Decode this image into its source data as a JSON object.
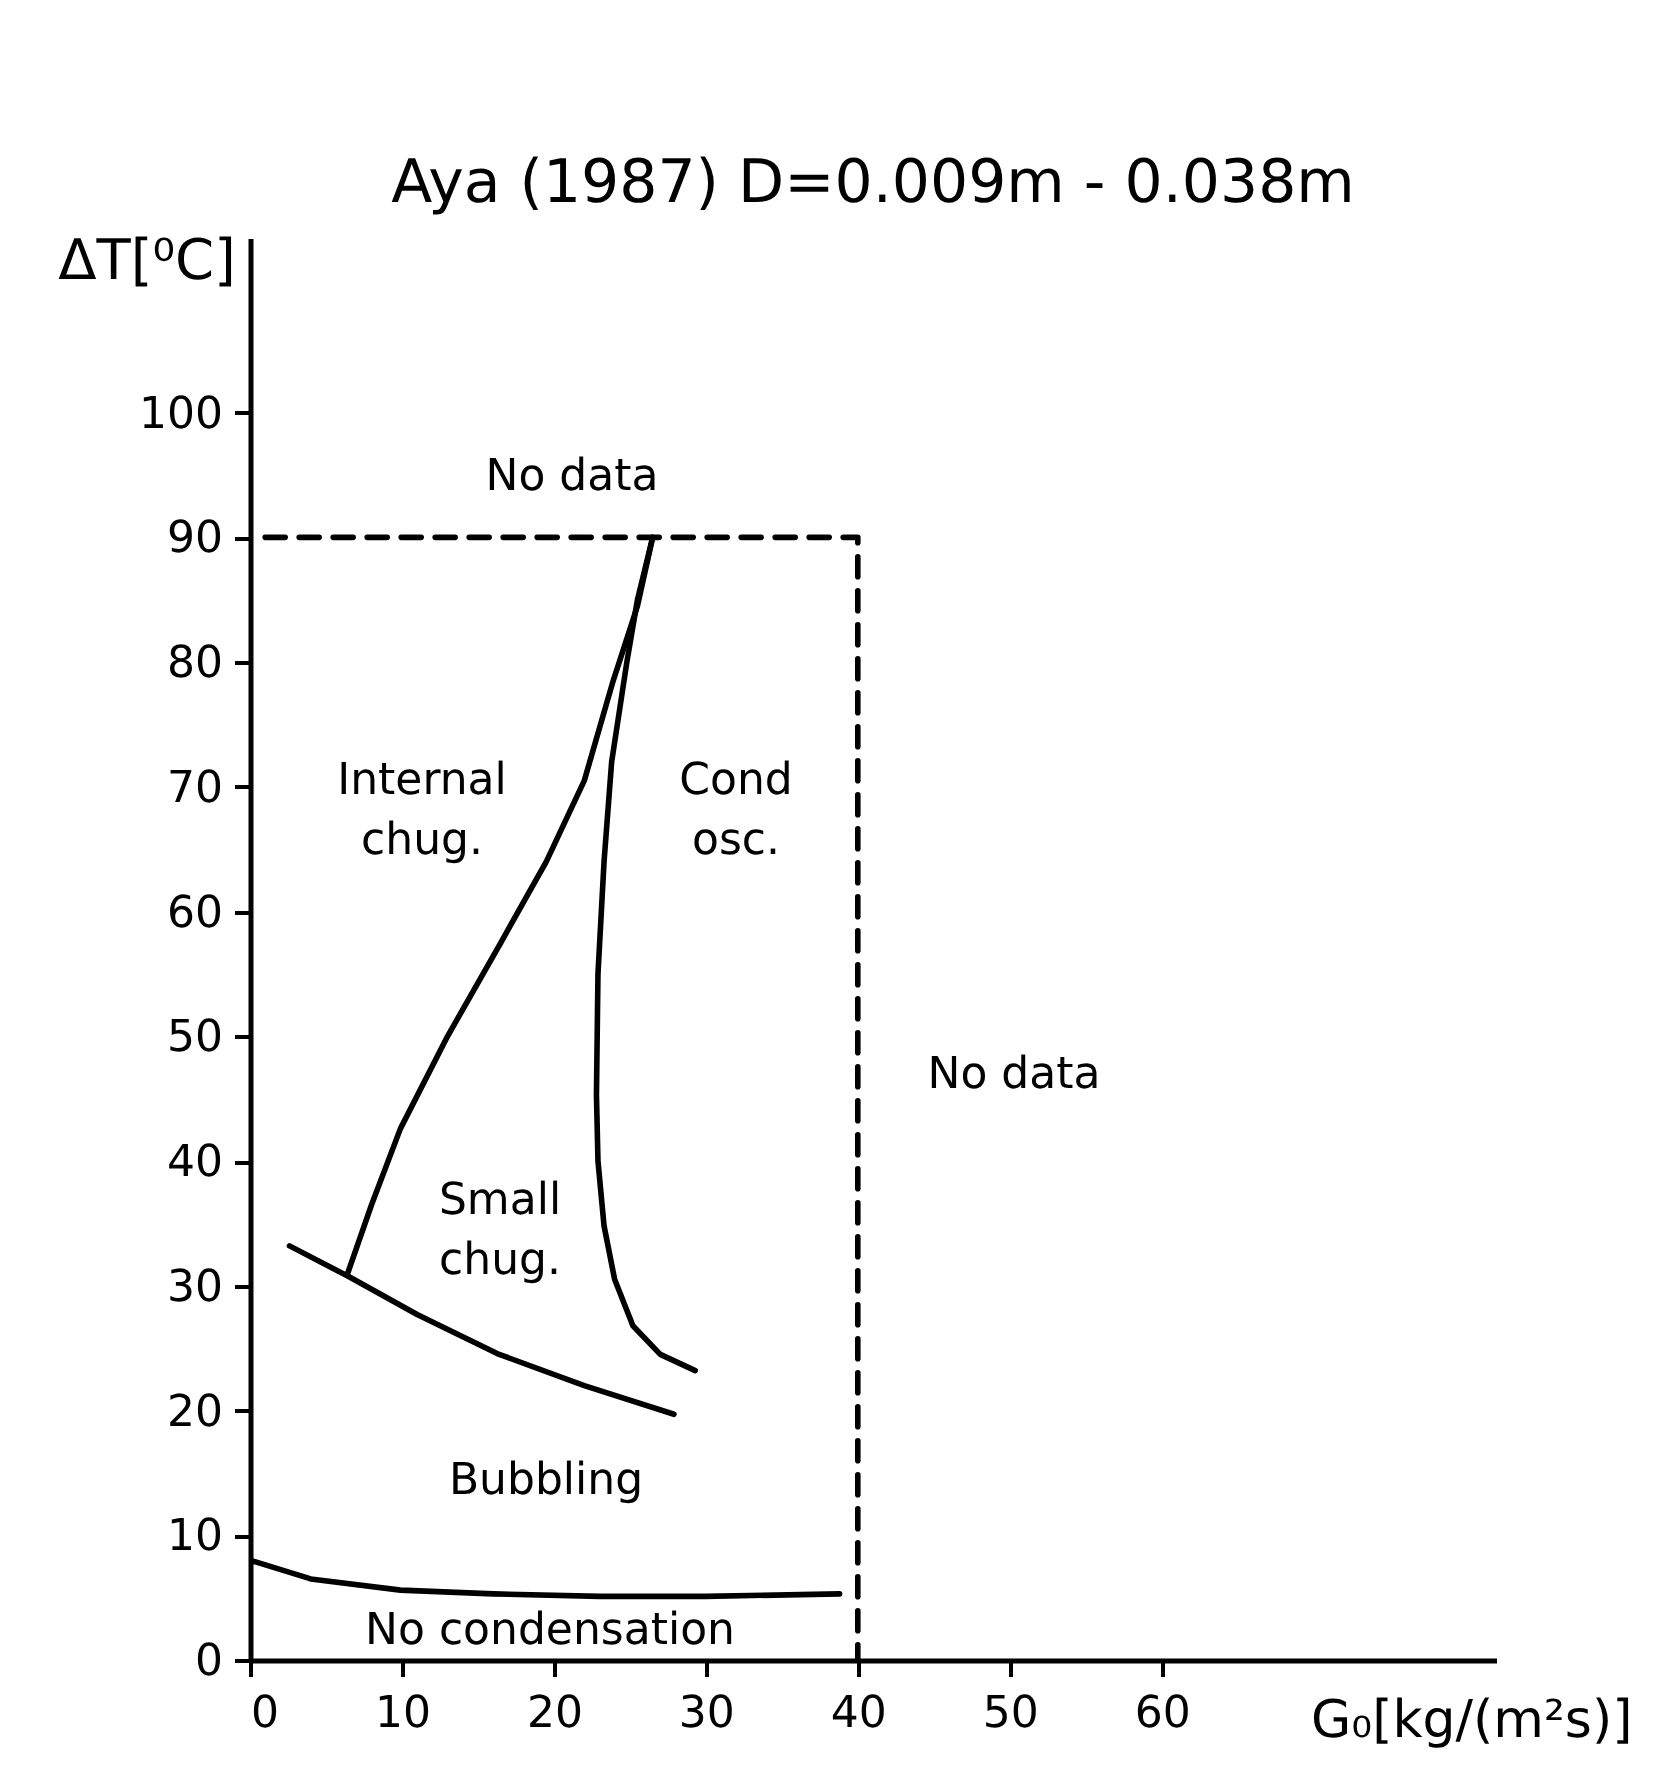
{
  "chart_data": {
    "type": "line",
    "title": "Aya (1987)    D=0.009m - 0.038m",
    "xlabel": "G₀[kg/(m²s)]",
    "ylabel": "ΔT[⁰C]",
    "xlim": [
      0,
      82
    ],
    "ylim": [
      0,
      114
    ],
    "xticks": [
      0,
      10,
      20,
      30,
      40,
      50,
      60
    ],
    "yticks": [
      0,
      10,
      20,
      30,
      40,
      50,
      60,
      70,
      80,
      90,
      100
    ],
    "grid": false,
    "marker": "none",
    "series": [
      {
        "color": "#000000",
        "line_style": "solid",
        "x": [
          6.4,
          8,
          9.9,
          13,
          16.5,
          19.5,
          22,
          23.9,
          25.5,
          26.5
        ],
        "values": [
          30.9,
          36.5,
          42.6,
          50,
          57.5,
          64,
          70.5,
          78.5,
          84.5,
          90
        ]
      },
      {
        "color": "#000000",
        "line_style": "solid",
        "x": [
          26.5,
          25.5,
          24.8,
          23.8,
          23.3,
          22.9,
          22.8,
          22.9,
          23.3,
          24,
          25.2,
          27,
          29.3
        ],
        "values": [
          90,
          85,
          80,
          72,
          64,
          55,
          45.3,
          40,
          34.8,
          30.5,
          26.8,
          24.5,
          23.2
        ]
      },
      {
        "color": "#000000",
        "line_style": "solid",
        "x": [
          2.6,
          6.4,
          11,
          16.4,
          22,
          27.9
        ],
        "values": [
          33.2,
          30.8,
          27.7,
          24.5,
          22,
          19.7
        ]
      },
      {
        "color": "#000000",
        "line_style": "solid",
        "x": [
          0,
          4,
          9.9,
          16,
          23,
          30,
          38.8
        ],
        "values": [
          8,
          6.5,
          5.6,
          5.3,
          5.1,
          5.1,
          5.3
        ]
      },
      {
        "color": "#000000",
        "line_style": "dashed",
        "x": [
          1,
          40,
          40
        ],
        "values": [
          90,
          90,
          0
        ]
      }
    ],
    "annotations": [
      "No data",
      "No data",
      "Internal\nchug.",
      "Cond\nosc.",
      "Small\nchug.",
      "Bubbling",
      "No condensation"
    ]
  }
}
